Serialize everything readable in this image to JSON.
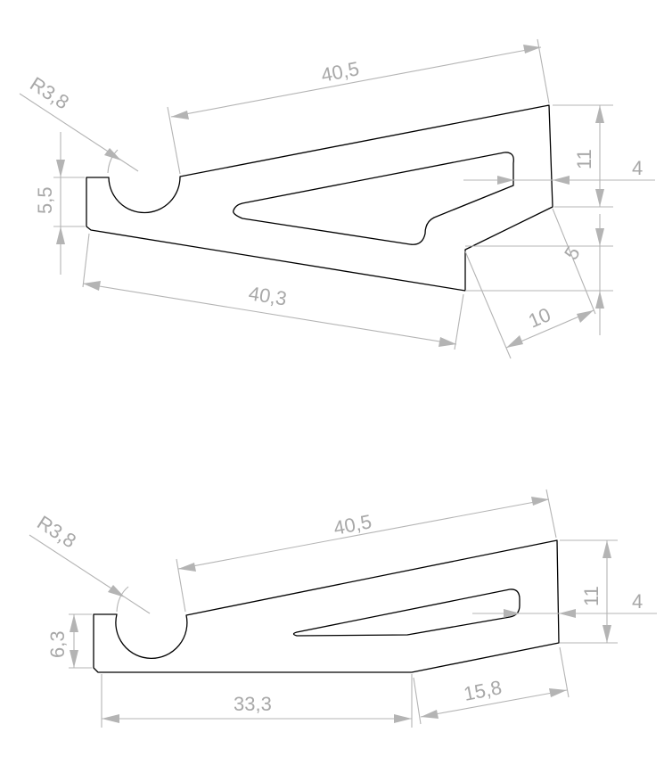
{
  "colors": {
    "part_line": "#000000",
    "dimension_line": "#b4b4b4",
    "dimension_text": "#a8a8a8",
    "background": "#ffffff"
  },
  "part_a": {
    "dim_top_length": "40,5",
    "dim_radius": "R3,8",
    "dim_left_height": "5,5",
    "dim_bottom_length": "40,3",
    "dim_right_height": "11",
    "dim_slot_offset": "4",
    "dim_step_height": "5",
    "dim_step_length": "10"
  },
  "part_b": {
    "dim_top_length": "40,5",
    "dim_radius": "R3,8",
    "dim_left_height": "6,3",
    "dim_bottom_length": "33,3",
    "dim_right_height": "11",
    "dim_slot_offset": "4",
    "dim_bevel_length": "15,8"
  }
}
